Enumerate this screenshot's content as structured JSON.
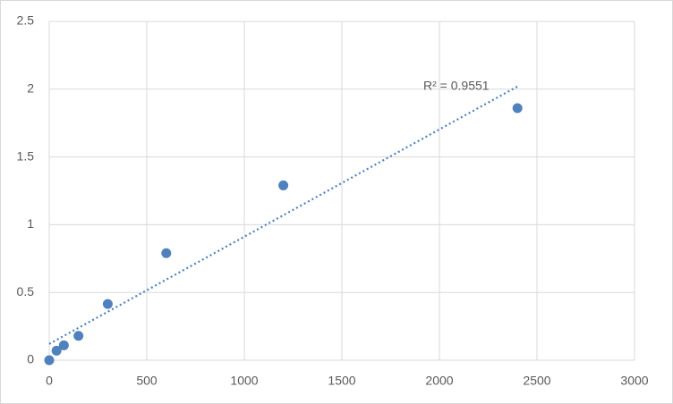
{
  "chart_data": {
    "type": "scatter",
    "x": [
      0,
      37.5,
      75,
      150,
      300,
      600,
      1200,
      2400
    ],
    "series": [
      {
        "color": "#4f81bd",
        "values": [
          0,
          0.07,
          0.11,
          0.18,
          0.415,
          0.79,
          1.29,
          1.86
        ]
      }
    ],
    "trendline": {
      "x": [
        0,
        2400
      ],
      "y": [
        0.12,
        2.02
      ],
      "color": "#4f81bd"
    },
    "annotation": "R² = 0.9551",
    "xlim": [
      0,
      3000
    ],
    "xticks": [
      0,
      500,
      1000,
      1500,
      2000,
      2500,
      3000
    ],
    "ylim": [
      0,
      2.5
    ],
    "yticks": [
      0,
      0.5,
      1,
      1.5,
      2,
      2.5
    ],
    "grid": true
  }
}
